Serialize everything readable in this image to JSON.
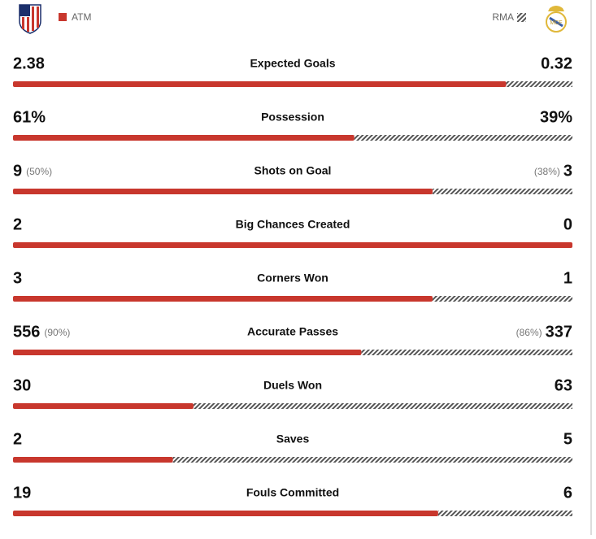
{
  "header": {
    "home_team": "ATM",
    "away_team": "RMA"
  },
  "stats": [
    {
      "label": "Expected Goals",
      "home": 2.38,
      "away": 0.32
    },
    {
      "label": "Possession",
      "home": {
        "value": 61,
        "label": "61%"
      },
      "away": {
        "value": 39,
        "label": "39%"
      }
    },
    {
      "label": "Shots on Goal",
      "home": 9,
      "away": 3,
      "home_note": "(50%)",
      "away_note": "(38%)"
    },
    {
      "label": "Big Chances Created",
      "home": 2,
      "away": 0
    },
    {
      "label": "Corners Won",
      "home": 3,
      "away": 1
    },
    {
      "label": "Accurate Passes",
      "home": 556,
      "away": 337,
      "home_note": "(90%)",
      "away_note": "(86%)"
    },
    {
      "label": "Duels Won",
      "home": 30,
      "away": 63
    },
    {
      "label": "Saves",
      "home": 2,
      "away": 5
    },
    {
      "label": "Fouls Committed",
      "home": 19,
      "away": 6
    }
  ],
  "colors": {
    "home": "#c8372d",
    "away_stripe": "#555555"
  }
}
